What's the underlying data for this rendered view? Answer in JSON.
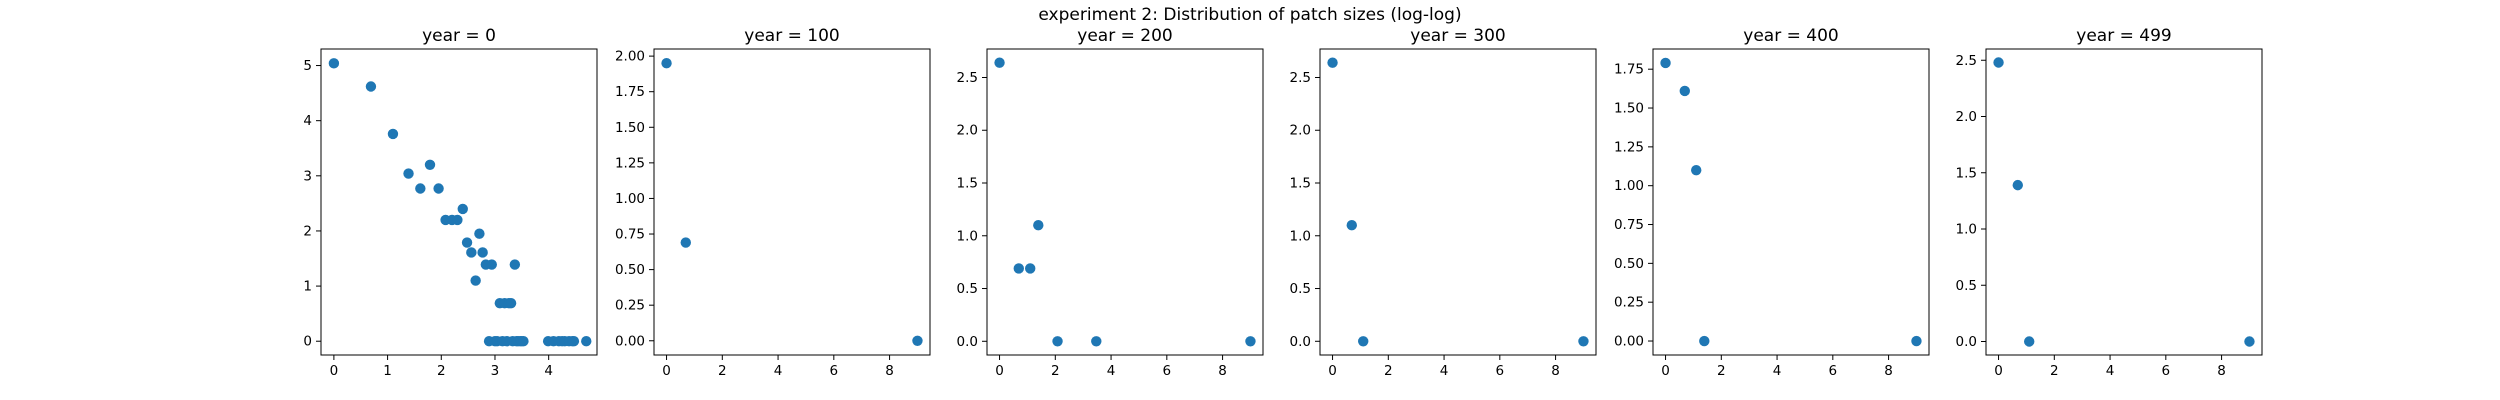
{
  "figure": {
    "title": "experiment 2: Distribution of patch sizes (log-log)"
  },
  "colors": {
    "marker": "#1f77b4",
    "axes": "#000000",
    "background": "#ffffff"
  },
  "chart_data": [
    {
      "type": "scatter",
      "title": "year = 0",
      "xlabel": "",
      "ylabel": "",
      "xlim": [
        -0.24,
        4.9
      ],
      "ylim": [
        -0.25,
        5.3
      ],
      "xticks": [
        0,
        1,
        2,
        3,
        4
      ],
      "xtick_labels": [
        "0",
        "1",
        "2",
        "3",
        "4"
      ],
      "yticks": [
        0,
        1,
        2,
        3,
        4,
        5
      ],
      "ytick_labels": [
        "0",
        "1",
        "2",
        "3",
        "4",
        "5"
      ],
      "grid": false,
      "series": [
        {
          "x": [
            0.0,
            0.69,
            1.1,
            1.39,
            1.61,
            1.79,
            1.95,
            2.08,
            2.2,
            2.3,
            2.4,
            2.48,
            2.56,
            2.64,
            2.71,
            2.77,
            2.83,
            2.89,
            2.94,
            3.0,
            3.04,
            3.09,
            3.14,
            3.18,
            3.22,
            3.26,
            3.3,
            3.33,
            3.37,
            3.4,
            3.43,
            3.47,
            3.5,
            3.53,
            3.99,
            4.09,
            4.19,
            4.25,
            4.3,
            4.38,
            4.44,
            4.47,
            4.7
          ],
          "y": [
            5.04,
            4.62,
            3.76,
            3.04,
            2.77,
            3.2,
            2.77,
            2.2,
            2.2,
            2.2,
            2.4,
            1.79,
            1.61,
            1.1,
            1.95,
            1.61,
            1.39,
            0.0,
            1.39,
            0.0,
            0.0,
            0.69,
            0.0,
            0.69,
            0.0,
            0.69,
            0.69,
            0.0,
            1.39,
            0.0,
            0.0,
            0.0,
            0.0,
            0.0,
            0.0,
            0.0,
            0.0,
            0.0,
            0.0,
            0.0,
            0.0,
            0.0,
            0.0
          ]
        }
      ]
    },
    {
      "type": "scatter",
      "title": "year = 100",
      "xlabel": "",
      "ylabel": "",
      "xlim": [
        -0.45,
        9.45
      ],
      "ylim": [
        -0.1,
        2.05
      ],
      "xticks": [
        0,
        2,
        4,
        6,
        8
      ],
      "xtick_labels": [
        "0",
        "2",
        "4",
        "6",
        "8"
      ],
      "yticks": [
        0.0,
        0.25,
        0.5,
        0.75,
        1.0,
        1.25,
        1.5,
        1.75,
        2.0
      ],
      "ytick_labels": [
        "0.00",
        "0.25",
        "0.50",
        "0.75",
        "1.00",
        "1.25",
        "1.50",
        "1.75",
        "2.00"
      ],
      "grid": false,
      "series": [
        {
          "x": [
            0.0,
            0.69,
            9.0
          ],
          "y": [
            1.95,
            0.69,
            0.0
          ]
        }
      ]
    },
    {
      "type": "scatter",
      "title": "year = 200",
      "xlabel": "",
      "ylabel": "",
      "xlim": [
        -0.45,
        9.45
      ],
      "ylim": [
        -0.13,
        2.77
      ],
      "xticks": [
        0,
        2,
        4,
        6,
        8
      ],
      "xtick_labels": [
        "0",
        "2",
        "4",
        "6",
        "8"
      ],
      "yticks": [
        0.0,
        0.5,
        1.0,
        1.5,
        2.0,
        2.5
      ],
      "ytick_labels": [
        "0.0",
        "0.5",
        "1.0",
        "1.5",
        "2.0",
        "2.5"
      ],
      "grid": false,
      "series": [
        {
          "x": [
            0.0,
            0.69,
            1.1,
            1.39,
            2.08,
            3.47,
            9.0
          ],
          "y": [
            2.64,
            0.69,
            0.69,
            1.1,
            0.0,
            0.0,
            0.0
          ]
        }
      ]
    },
    {
      "type": "scatter",
      "title": "year = 300",
      "xlabel": "",
      "ylabel": "",
      "xlim": [
        -0.45,
        9.45
      ],
      "ylim": [
        -0.13,
        2.77
      ],
      "xticks": [
        0,
        2,
        4,
        6,
        8
      ],
      "xtick_labels": [
        "0",
        "2",
        "4",
        "6",
        "8"
      ],
      "yticks": [
        0.0,
        0.5,
        1.0,
        1.5,
        2.0,
        2.5
      ],
      "ytick_labels": [
        "0.0",
        "0.5",
        "1.0",
        "1.5",
        "2.0",
        "2.5"
      ],
      "grid": false,
      "series": [
        {
          "x": [
            0.0,
            0.69,
            1.1,
            9.0
          ],
          "y": [
            2.64,
            1.1,
            0.0,
            0.0
          ]
        }
      ]
    },
    {
      "type": "scatter",
      "title": "year = 400",
      "xlabel": "",
      "ylabel": "",
      "xlim": [
        -0.45,
        9.45
      ],
      "ylim": [
        -0.09,
        1.88
      ],
      "xticks": [
        0,
        2,
        4,
        6,
        8
      ],
      "xtick_labels": [
        "0",
        "2",
        "4",
        "6",
        "8"
      ],
      "yticks": [
        0.0,
        0.25,
        0.5,
        0.75,
        1.0,
        1.25,
        1.5,
        1.75
      ],
      "ytick_labels": [
        "0.00",
        "0.25",
        "0.50",
        "0.75",
        "1.00",
        "1.25",
        "1.50",
        "1.75"
      ],
      "grid": false,
      "series": [
        {
          "x": [
            0.0,
            0.69,
            1.1,
            1.39,
            9.0
          ],
          "y": [
            1.79,
            1.61,
            1.1,
            0.0,
            0.0
          ]
        }
      ]
    },
    {
      "type": "scatter",
      "title": "year = 499",
      "xlabel": "",
      "ylabel": "",
      "xlim": [
        -0.45,
        9.45
      ],
      "ylim": [
        -0.12,
        2.6
      ],
      "xticks": [
        0,
        2,
        4,
        6,
        8
      ],
      "xtick_labels": [
        "0",
        "2",
        "4",
        "6",
        "8"
      ],
      "yticks": [
        0.0,
        0.5,
        1.0,
        1.5,
        2.0,
        2.5
      ],
      "ytick_labels": [
        "0.0",
        "0.5",
        "1.0",
        "1.5",
        "2.0",
        "2.5"
      ],
      "grid": false,
      "series": [
        {
          "x": [
            0.0,
            0.69,
            1.1,
            9.0
          ],
          "y": [
            2.48,
            1.39,
            0.0,
            0.0
          ]
        }
      ]
    }
  ]
}
